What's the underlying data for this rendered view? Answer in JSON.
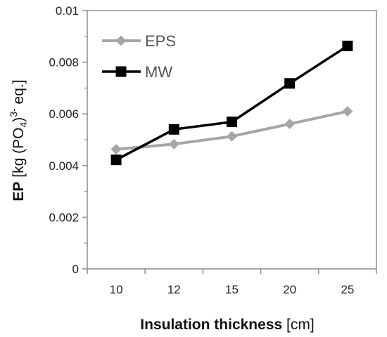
{
  "chart_data": {
    "type": "line",
    "categories": [
      "10",
      "12",
      "15",
      "20",
      "25"
    ],
    "series": [
      {
        "name": "EPS",
        "values": [
          0.00463,
          0.00483,
          0.00513,
          0.00561,
          0.0061
        ],
        "color": "#a6a6a6",
        "marker": "diamond"
      },
      {
        "name": "MW",
        "values": [
          0.00422,
          0.0054,
          0.00569,
          0.00718,
          0.00863
        ],
        "color": "#000000",
        "marker": "square"
      }
    ],
    "yticks": [
      "0",
      "0.002",
      "0.004",
      "0.006",
      "0.008",
      "0.01"
    ],
    "ylim": [
      0,
      0.01
    ],
    "xlabel": {
      "bold": "Insulation thickness",
      "rest": " [cm]"
    },
    "ylabel": {
      "bold": "EP",
      "pre": " [kg (PO",
      "sub": "4",
      "mid": ")",
      "sup": "3-",
      "post": " eq.]"
    },
    "grid": false,
    "legend_position": "top-left"
  }
}
